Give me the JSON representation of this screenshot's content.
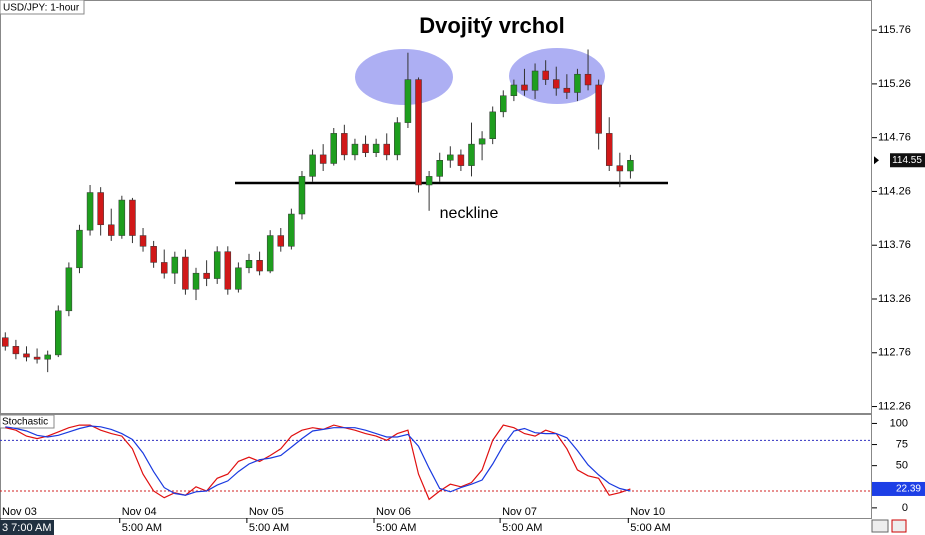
{
  "chart_data": [
    {
      "type": "candlestick",
      "title": "Dvojitý vrchol",
      "label": "USD/JPY: 1-hour",
      "annotations": [
        "neckline"
      ],
      "up_color": "#1e9e1e",
      "down_color": "#d01818",
      "xlim": [
        -0.5,
        81.8
      ],
      "ylim": [
        112.2,
        116.04
      ],
      "yticks": [
        112.26,
        112.76,
        113.26,
        113.76,
        114.26,
        114.76,
        115.26,
        115.76
      ],
      "open": [
        112.9,
        112.82,
        112.75,
        112.72,
        112.7,
        112.74,
        113.15,
        113.55,
        113.9,
        114.25,
        113.95,
        113.85,
        114.18,
        113.85,
        113.75,
        113.6,
        113.5,
        113.65,
        113.35,
        113.5,
        113.45,
        113.7,
        113.35,
        113.55,
        113.62,
        113.52,
        113.85,
        113.75,
        114.05,
        114.4,
        114.6,
        114.52,
        114.8,
        114.6,
        114.7,
        114.62,
        114.7,
        114.6,
        114.9,
        115.3,
        114.32,
        114.4,
        114.55,
        114.6,
        114.5,
        114.7,
        114.75,
        115.0,
        115.15,
        115.25,
        115.2,
        115.38,
        115.3,
        115.22,
        115.18,
        115.35,
        115.25,
        114.8,
        114.5,
        114.45
      ],
      "high": [
        112.95,
        112.88,
        112.82,
        112.8,
        112.78,
        113.2,
        113.6,
        113.95,
        114.32,
        114.3,
        114.1,
        114.22,
        114.2,
        113.92,
        113.8,
        113.72,
        113.7,
        113.72,
        113.55,
        113.62,
        113.75,
        113.75,
        113.6,
        113.68,
        113.7,
        113.9,
        113.92,
        114.1,
        114.45,
        114.65,
        114.7,
        114.85,
        114.88,
        114.75,
        114.78,
        114.75,
        114.8,
        114.95,
        115.55,
        115.32,
        114.45,
        114.62,
        114.68,
        114.65,
        114.9,
        114.82,
        115.05,
        115.2,
        115.3,
        115.4,
        115.45,
        115.48,
        115.42,
        115.35,
        115.4,
        115.58,
        115.3,
        114.95,
        114.62,
        114.6
      ],
      "low": [
        112.78,
        112.7,
        112.68,
        112.66,
        112.58,
        112.72,
        113.1,
        113.5,
        113.85,
        113.85,
        113.8,
        113.82,
        113.78,
        113.7,
        113.55,
        113.45,
        113.4,
        113.3,
        113.25,
        113.38,
        113.4,
        113.3,
        113.32,
        113.5,
        113.48,
        113.5,
        113.7,
        113.72,
        114.0,
        114.35,
        114.45,
        114.5,
        114.55,
        114.55,
        114.58,
        114.58,
        114.55,
        114.55,
        114.85,
        114.25,
        114.08,
        114.35,
        114.48,
        114.45,
        114.4,
        114.55,
        114.7,
        114.95,
        115.1,
        115.15,
        115.12,
        115.25,
        115.15,
        115.12,
        115.1,
        115.2,
        114.65,
        114.45,
        114.3,
        114.38
      ],
      "close": [
        112.82,
        112.75,
        112.72,
        112.7,
        112.74,
        113.15,
        113.55,
        113.9,
        114.25,
        113.95,
        113.85,
        114.18,
        113.85,
        113.75,
        113.6,
        113.5,
        113.65,
        113.35,
        113.5,
        113.45,
        113.7,
        113.35,
        113.55,
        113.62,
        113.52,
        113.85,
        113.75,
        114.05,
        114.4,
        114.6,
        114.52,
        114.8,
        114.6,
        114.7,
        114.62,
        114.7,
        114.6,
        114.9,
        115.3,
        114.32,
        114.4,
        114.55,
        114.6,
        114.5,
        114.7,
        114.75,
        115.0,
        115.15,
        115.25,
        115.2,
        115.38,
        115.3,
        115.22,
        115.18,
        115.35,
        115.25,
        114.8,
        114.5,
        114.45,
        114.55
      ]
    },
    {
      "type": "line",
      "label": "Stochastic",
      "xlim": [
        -0.5,
        81.8
      ],
      "ylim": [
        -12,
        110
      ],
      "yticks": [
        0,
        50,
        75,
        100
      ],
      "levels": [
        {
          "value": 80,
          "color": "#3030c0"
        },
        {
          "value": 20,
          "color": "#d02020"
        }
      ],
      "xticks": [
        {
          "value": -0.5,
          "label": "Nov 03"
        },
        {
          "value": 10.8,
          "label": "Nov 04"
        },
        {
          "value": 22.8,
          "label": "Nov 05"
        },
        {
          "value": 34.8,
          "label": "Nov 06"
        },
        {
          "value": 46.7,
          "label": "Nov 07"
        },
        {
          "value": 58.8,
          "label": "Nov 10"
        }
      ],
      "xtick_times": [
        "3 7:00 AM",
        "5:00 AM",
        "5:00 AM",
        "5:00 AM",
        "5:00 AM",
        "5:00 AM"
      ],
      "series": [
        {
          "color": "#e01010",
          "values": [
            95,
            92,
            85,
            82,
            85,
            90,
            95,
            98,
            98,
            92,
            88,
            85,
            70,
            40,
            20,
            12,
            18,
            15,
            25,
            20,
            35,
            40,
            55,
            60,
            55,
            62,
            70,
            85,
            92,
            95,
            93,
            98,
            95,
            92,
            88,
            85,
            80,
            88,
            92,
            40,
            10,
            20,
            28,
            25,
            30,
            45,
            80,
            98,
            95,
            88,
            85,
            92,
            88,
            70,
            45,
            38,
            35,
            15,
            18,
            22.39
          ]
        },
        {
          "color": "#1a3ae0",
          "values": [
            96,
            94,
            91,
            86,
            84,
            86,
            90,
            94,
            97,
            96,
            93,
            88,
            81,
            65,
            43,
            24,
            17,
            15,
            19,
            20,
            27,
            32,
            43,
            52,
            57,
            59,
            62,
            72,
            82,
            91,
            93,
            95,
            95,
            95,
            92,
            88,
            84,
            84,
            87,
            73,
            47,
            23,
            19,
            24,
            28,
            33,
            52,
            74,
            91,
            94,
            89,
            88,
            88,
            83,
            68,
            51,
            39,
            29,
            23,
            20
          ]
        }
      ]
    }
  ]
}
